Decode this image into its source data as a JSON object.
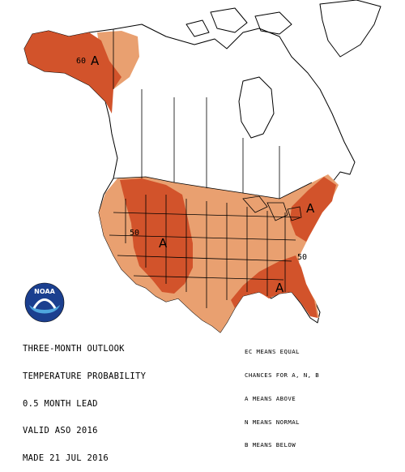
{
  "colors": {
    "above_50": "#d2532b",
    "above_40": "#e0885a",
    "above_33": "#e9a070",
    "land": "#ffffff",
    "line": "#000000",
    "logo_blue": "#1b3f8f",
    "logo_light": "#4fa6de"
  },
  "logo": {
    "label": "NOAA",
    "icon": "noaa-logo-icon"
  },
  "title_lines": [
    "THREE-MONTH OUTLOOK",
    "TEMPERATURE PROBABILITY",
    "0.5 MONTH LEAD",
    "VALID ASO 2016",
    "MADE 21 JUL 2016"
  ],
  "legend_lines": [
    "EC MEANS EQUAL",
    "CHANCES FOR A, N, B",
    "A MEANS ABOVE",
    "N MEANS NORMAL",
    "B MEANS BELOW"
  ],
  "contour_labels": {
    "alaska_60": "60",
    "west_50": "50",
    "southeast_50": "50"
  },
  "category_letters": {
    "alaska": "A",
    "west": "A",
    "northeast": "A",
    "southeast": "A"
  }
}
